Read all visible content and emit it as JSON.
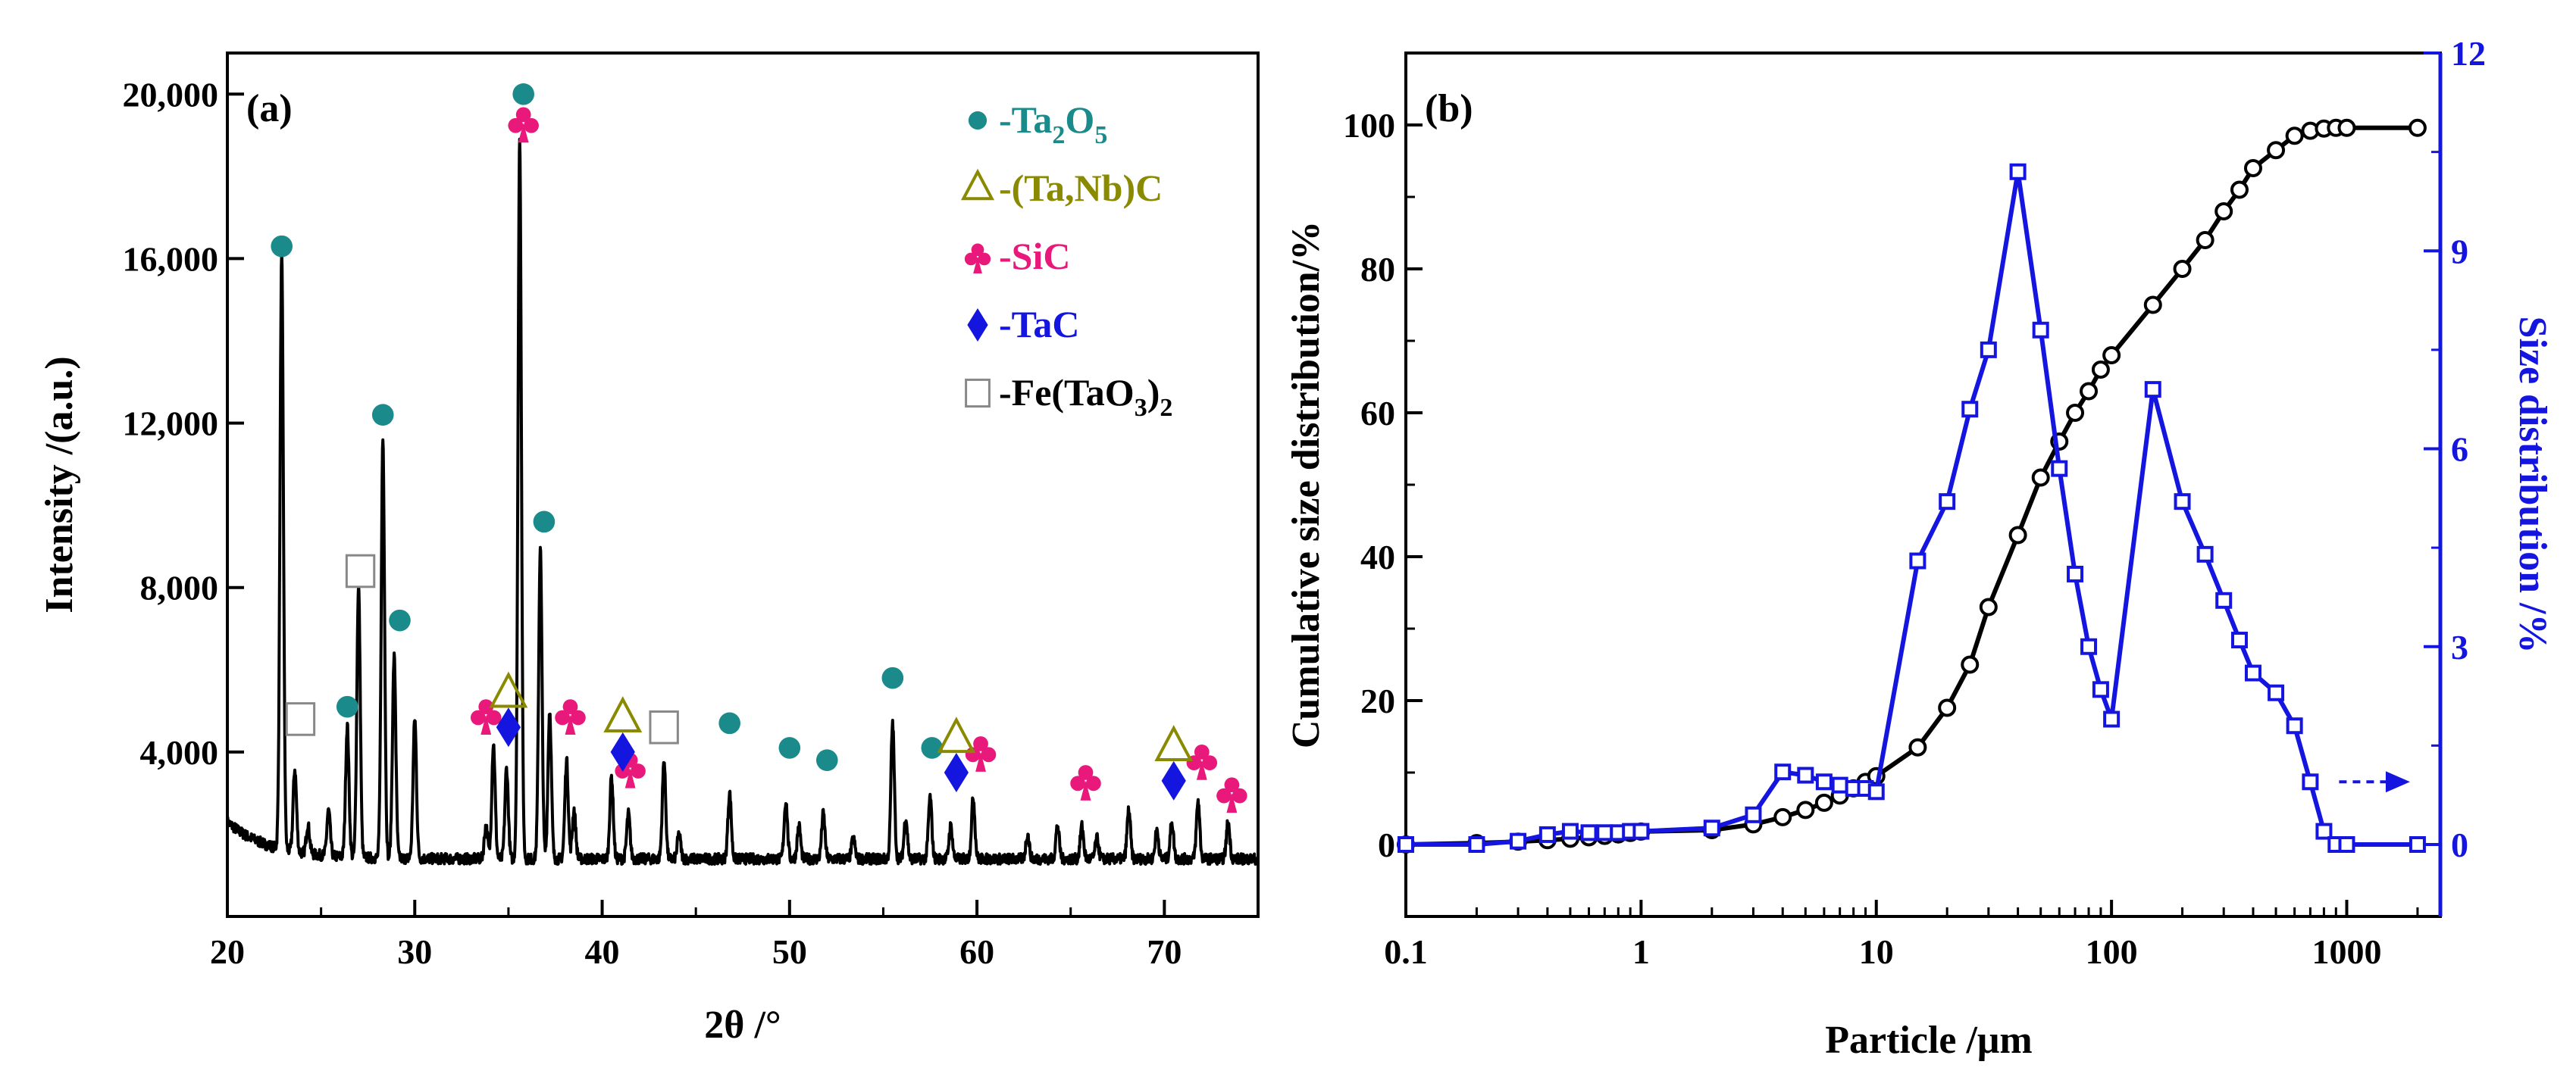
{
  "chart_data": [
    {
      "panel": "(a)",
      "type": "line",
      "xlabel": "2θ /°",
      "ylabel": "Intensity /(a.u.)",
      "xlim": [
        20,
        75
      ],
      "ylim": [
        0,
        21000
      ],
      "x_ticks": [
        20,
        30,
        40,
        50,
        60,
        70
      ],
      "x_tick_labels": [
        "20",
        "30",
        "40",
        "50",
        "60",
        "70"
      ],
      "y_ticks": [
        4000,
        8000,
        12000,
        16000,
        20000
      ],
      "y_tick_labels": [
        "4,000",
        "8,000",
        "12,000",
        "16,000",
        "20,000"
      ],
      "baseline": 1400,
      "peaks": [
        {
          "x": 22.9,
          "y": 15800
        },
        {
          "x": 23.6,
          "y": 3400
        },
        {
          "x": 24.3,
          "y": 2100
        },
        {
          "x": 25.4,
          "y": 2500
        },
        {
          "x": 26.4,
          "y": 4600
        },
        {
          "x": 27.0,
          "y": 8000
        },
        {
          "x": 28.3,
          "y": 11600
        },
        {
          "x": 28.9,
          "y": 6300
        },
        {
          "x": 30.0,
          "y": 4800
        },
        {
          "x": 33.8,
          "y": 2200
        },
        {
          "x": 34.2,
          "y": 4200
        },
        {
          "x": 34.9,
          "y": 3600
        },
        {
          "x": 35.6,
          "y": 19000
        },
        {
          "x": 36.7,
          "y": 9000
        },
        {
          "x": 37.2,
          "y": 5000
        },
        {
          "x": 38.1,
          "y": 3800
        },
        {
          "x": 38.5,
          "y": 2600
        },
        {
          "x": 40.5,
          "y": 3400
        },
        {
          "x": 41.4,
          "y": 2500
        },
        {
          "x": 43.3,
          "y": 3800
        },
        {
          "x": 44.1,
          "y": 2000
        },
        {
          "x": 46.8,
          "y": 3000
        },
        {
          "x": 49.8,
          "y": 2800
        },
        {
          "x": 50.5,
          "y": 2200
        },
        {
          "x": 51.8,
          "y": 2500
        },
        {
          "x": 53.4,
          "y": 1900
        },
        {
          "x": 55.5,
          "y": 4700
        },
        {
          "x": 56.2,
          "y": 2400
        },
        {
          "x": 57.5,
          "y": 2900
        },
        {
          "x": 58.6,
          "y": 2200
        },
        {
          "x": 59.8,
          "y": 2900
        },
        {
          "x": 62.7,
          "y": 2000
        },
        {
          "x": 64.3,
          "y": 2200
        },
        {
          "x": 65.6,
          "y": 2200
        },
        {
          "x": 66.4,
          "y": 1900
        },
        {
          "x": 68.1,
          "y": 2600
        },
        {
          "x": 69.6,
          "y": 2100
        },
        {
          "x": 70.4,
          "y": 2300
        },
        {
          "x": 71.8,
          "y": 2800
        },
        {
          "x": 73.4,
          "y": 2300
        }
      ],
      "markers": [
        {
          "symbol": "circle",
          "x": 22.9,
          "y": 16300
        },
        {
          "symbol": "circle",
          "x": 26.4,
          "y": 5100
        },
        {
          "symbol": "circle",
          "x": 28.3,
          "y": 12200
        },
        {
          "symbol": "circle",
          "x": 29.2,
          "y": 7200
        },
        {
          "symbol": "circle",
          "x": 35.8,
          "y": 20000
        },
        {
          "symbol": "circle",
          "x": 36.9,
          "y": 9600
        },
        {
          "symbol": "circle",
          "x": 46.8,
          "y": 4700
        },
        {
          "symbol": "circle",
          "x": 50.0,
          "y": 4100
        },
        {
          "symbol": "circle",
          "x": 52.0,
          "y": 3800
        },
        {
          "symbol": "circle",
          "x": 55.5,
          "y": 5800
        },
        {
          "symbol": "circle",
          "x": 57.6,
          "y": 4100
        },
        {
          "symbol": "club",
          "x": 35.8,
          "y": 19300
        },
        {
          "symbol": "club",
          "x": 33.8,
          "y": 4900
        },
        {
          "symbol": "club",
          "x": 38.3,
          "y": 4900
        },
        {
          "symbol": "club",
          "x": 41.5,
          "y": 3600
        },
        {
          "symbol": "club",
          "x": 60.2,
          "y": 4000
        },
        {
          "symbol": "club",
          "x": 65.8,
          "y": 3300
        },
        {
          "symbol": "club",
          "x": 72.0,
          "y": 3800
        },
        {
          "symbol": "club",
          "x": 73.6,
          "y": 3000
        },
        {
          "symbol": "diamond",
          "x": 35.0,
          "y": 4600
        },
        {
          "symbol": "diamond",
          "x": 41.1,
          "y": 4000
        },
        {
          "symbol": "diamond",
          "x": 58.9,
          "y": 3500
        },
        {
          "symbol": "diamond",
          "x": 70.5,
          "y": 3300
        },
        {
          "symbol": "delta",
          "x": 35.0,
          "y": 5400
        },
        {
          "symbol": "delta",
          "x": 41.1,
          "y": 4800
        },
        {
          "symbol": "delta",
          "x": 58.9,
          "y": 4300
        },
        {
          "symbol": "delta",
          "x": 70.5,
          "y": 4100
        },
        {
          "symbol": "square",
          "x": 23.9,
          "y": 4800
        },
        {
          "symbol": "square",
          "x": 27.1,
          "y": 8400
        },
        {
          "symbol": "square",
          "x": 43.3,
          "y": 4600
        }
      ],
      "legend": [
        {
          "symbol": "circle",
          "color": "#1a8a8a",
          "label": "-Ta",
          "sub1": "2",
          "mid": "O",
          "sub2": "5"
        },
        {
          "symbol": "delta",
          "color": "#8a8a00",
          "label": "-(Ta,Nb)C"
        },
        {
          "symbol": "club",
          "color": "#e8197a",
          "label": "-SiC"
        },
        {
          "symbol": "diamond",
          "color": "#1515e0",
          "label": "-TaC"
        },
        {
          "symbol": "square",
          "color": "#000000",
          "label": "-Fe(TaO",
          "sub1": "3",
          "after": ")",
          "sub2": "2"
        }
      ]
    },
    {
      "panel": "(b)",
      "type": "line",
      "xscale": "log",
      "xlabel": "Particle /μm",
      "ylabel_left": "Cumulative size distribution/%",
      "ylabel_right": "Size distribution /%",
      "xlim": [
        0.1,
        2500
      ],
      "ylim_left": [
        -10,
        110
      ],
      "ylim_right": [
        -1.0909,
        12
      ],
      "x_tick_labels": [
        "0.1",
        "1",
        "10",
        "100",
        "1000"
      ],
      "x_ticks": [
        0.1,
        1,
        10,
        100,
        1000
      ],
      "y_left_ticks": [
        0,
        20,
        40,
        60,
        80,
        100
      ],
      "y_left_tick_labels": [
        "0",
        "20",
        "40",
        "60",
        "80",
        "100"
      ],
      "y_right_ticks": [
        0,
        3,
        6,
        9,
        12
      ],
      "y_right_tick_labels": [
        "0",
        "3",
        "6",
        "9",
        "12"
      ],
      "series": [
        {
          "name": "Cumulative size distribution",
          "axis": "left",
          "color": "#000000",
          "marker": "circle",
          "x": [
            0.1,
            0.2,
            0.3,
            0.4,
            0.5,
            0.6,
            0.7,
            0.8,
            0.9,
            1,
            2,
            3,
            4,
            5,
            6,
            7,
            8,
            9,
            10,
            15,
            20,
            25,
            30,
            40,
            50,
            60,
            70,
            80,
            90,
            100,
            150,
            200,
            250,
            300,
            350,
            400,
            500,
            600,
            700,
            800,
            900,
            1000,
            2000
          ],
          "values": [
            0,
            0.2,
            0.4,
            0.6,
            0.8,
            1.0,
            1.2,
            1.4,
            1.6,
            1.8,
            2.0,
            2.8,
            3.8,
            4.8,
            5.8,
            6.8,
            7.8,
            8.7,
            9.5,
            13.5,
            19,
            25,
            33,
            43,
            51,
            56,
            60,
            63,
            66,
            68,
            75,
            80,
            84,
            88,
            91,
            94,
            96.5,
            98.5,
            99.2,
            99.5,
            99.6,
            99.6,
            99.6
          ]
        },
        {
          "name": "Size distribution",
          "axis": "right",
          "color": "#1515e0",
          "marker": "square",
          "x": [
            0.1,
            0.2,
            0.3,
            0.4,
            0.5,
            0.6,
            0.7,
            0.8,
            0.9,
            1,
            2,
            3,
            4,
            5,
            6,
            7,
            8,
            9,
            10,
            15,
            20,
            25,
            30,
            40,
            50,
            60,
            70,
            80,
            90,
            100,
            150,
            200,
            250,
            300,
            350,
            400,
            500,
            600,
            700,
            800,
            900,
            1000,
            2000
          ],
          "values": [
            0,
            0,
            0.05,
            0.15,
            0.2,
            0.18,
            0.18,
            0.18,
            0.2,
            0.2,
            0.25,
            0.45,
            1.1,
            1.05,
            0.95,
            0.9,
            0.85,
            0.85,
            0.8,
            4.3,
            5.2,
            6.6,
            7.5,
            10.2,
            7.8,
            5.7,
            4.1,
            3.0,
            2.35,
            1.9,
            6.9,
            5.2,
            4.4,
            3.7,
            3.1,
            2.6,
            2.3,
            1.8,
            0.95,
            0.2,
            0,
            0,
            0
          ]
        }
      ],
      "annotation": {
        "type": "dashed-arrow",
        "from_x": 800,
        "to_x": 2000,
        "y_right": 0.95,
        "color": "#1515e0"
      }
    }
  ]
}
